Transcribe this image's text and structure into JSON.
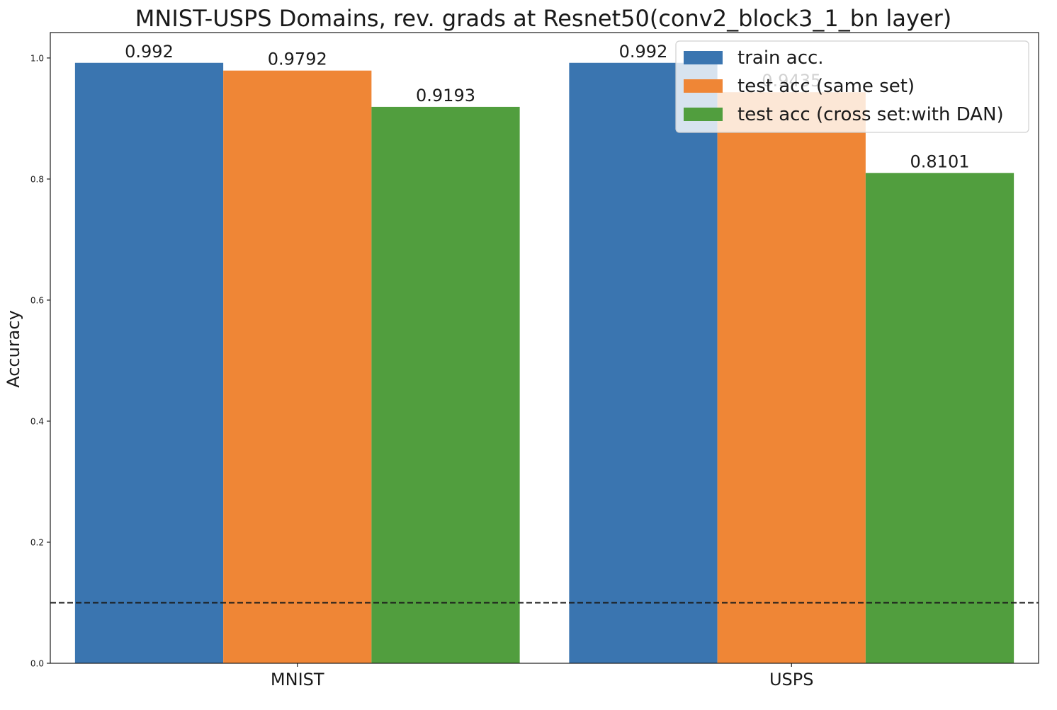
{
  "chart_data": {
    "type": "bar",
    "title": "MNIST-USPS Domains, rev. grads at Resnet50(conv2_block3_1_bn layer)",
    "ylabel": "Accuracy",
    "xlabel": "",
    "ylim": [
      0,
      1.042
    ],
    "yticks": [
      "0.0",
      "0.2",
      "0.4",
      "0.6",
      "0.8",
      "1.0"
    ],
    "categories": [
      "MNIST",
      "USPS"
    ],
    "series": [
      {
        "name": "train acc.",
        "values": [
          0.992,
          0.992
        ],
        "labels": [
          "0.992",
          "0.992"
        ],
        "color": "#3a75b0"
      },
      {
        "name": "test acc (same set)",
        "values": [
          0.9792,
          0.9435
        ],
        "labels": [
          "0.9792",
          "0.9435"
        ],
        "color": "#ef8636"
      },
      {
        "name": "test acc (cross set:with DAN)",
        "values": [
          0.9193,
          0.8101
        ],
        "labels": [
          "0.9193",
          "0.8101"
        ],
        "color": "#519e3e"
      }
    ],
    "reference_line": {
      "y": 0.1,
      "style": "dashed",
      "color": "#1a1a1a"
    },
    "legend_position": "top-right",
    "grid": false
  }
}
